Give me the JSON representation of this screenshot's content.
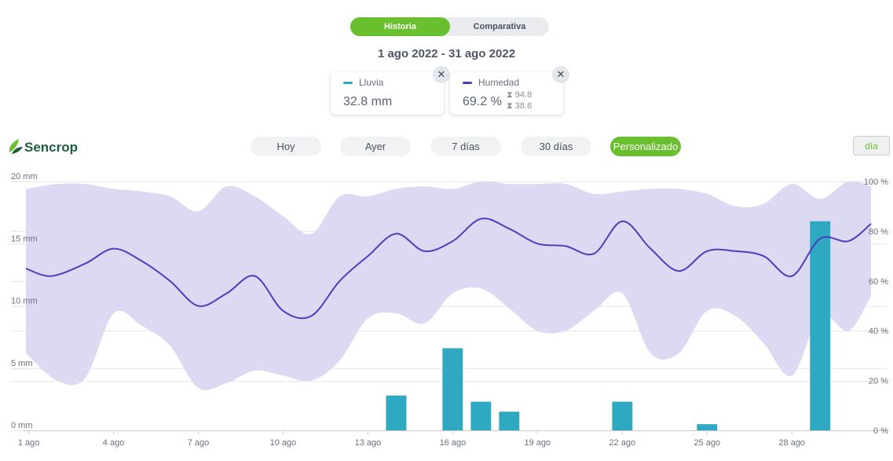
{
  "toggle": {
    "historia": "Historia",
    "comparativa": "Comparativa"
  },
  "date_range": "1 ago 2022 - 31 ago 2022",
  "cards": {
    "lluvia": {
      "label": "Lluvia",
      "value": "32.8 mm",
      "close": "✕",
      "color": "#2fa9c2"
    },
    "humedad": {
      "label": "Humedad",
      "value": "69.2 %",
      "max": "94.8",
      "min": "38.6",
      "close": "✕",
      "color": "#4c3fbf"
    }
  },
  "logo": {
    "text": "Sencrop"
  },
  "periods": [
    "Hoy",
    "Ayer",
    "7 días",
    "30 días",
    "Personalizado"
  ],
  "active_period": "Personalizado",
  "dia_button": "día",
  "chart_data": {
    "type": "bar+line+area",
    "x_labels": [
      "1 ago",
      "4 ago",
      "7 ago",
      "10 ago",
      "13 ago",
      "16 ago",
      "19 ago",
      "22 ago",
      "25 ago",
      "28 ago"
    ],
    "x_label_days": [
      1,
      4,
      7,
      10,
      13,
      16,
      19,
      22,
      25,
      28
    ],
    "x_range": [
      0.9,
      30.8
    ],
    "y_left": {
      "label_ticks": [
        "0 mm",
        "5 mm",
        "10 mm",
        "15 mm",
        "20 mm"
      ],
      "range": [
        0,
        20
      ],
      "unit": "mm"
    },
    "y_right": {
      "label_ticks": [
        "0 %",
        "20 %",
        "40 %",
        "60 %",
        "80 %",
        "100 %"
      ],
      "range": [
        0,
        100
      ],
      "unit": "%"
    },
    "rain": {
      "name": "Lluvia",
      "color": "#2fa9c2",
      "days": [
        1,
        2,
        3,
        4,
        5,
        6,
        7,
        8,
        9,
        10,
        11,
        12,
        13,
        14,
        15,
        16,
        17,
        18,
        19,
        20,
        21,
        22,
        23,
        24,
        25,
        26,
        27,
        28,
        29,
        30,
        31
      ],
      "values": [
        0,
        0,
        0,
        0,
        0,
        0,
        0,
        0,
        0,
        0,
        0,
        0,
        0,
        2.8,
        0,
        6.6,
        2.3,
        1.5,
        0,
        0,
        0,
        2.3,
        0,
        0,
        0.5,
        0,
        0,
        0,
        16.8,
        0,
        0
      ]
    },
    "humidity_avg": {
      "name": "Humedad",
      "color": "#4c3fbf",
      "days": [
        0.9,
        1.8,
        3,
        4,
        5,
        6,
        7,
        8,
        9,
        10,
        11,
        12,
        13,
        14,
        15,
        16,
        17,
        18,
        19,
        20,
        21,
        22,
        23,
        24,
        25,
        26,
        27,
        28,
        29,
        30,
        30.8
      ],
      "values": [
        65,
        62,
        67,
        73,
        68,
        60,
        50,
        55,
        62,
        48,
        46,
        60,
        70,
        79,
        72,
        76,
        85,
        81,
        75,
        74,
        71,
        84,
        73,
        64,
        72,
        72,
        70,
        62,
        77,
        76,
        83
      ]
    },
    "humidity_max": {
      "days": [
        0.9,
        2,
        3,
        4,
        5,
        6,
        7,
        8,
        9,
        10,
        11,
        12,
        13,
        14,
        15,
        16,
        17,
        18,
        19,
        20,
        21,
        22,
        23,
        24,
        25,
        26,
        27,
        28,
        29,
        30,
        30.8
      ],
      "values": [
        97,
        99,
        99,
        97,
        96,
        94,
        88,
        98,
        94,
        86,
        79,
        94,
        94,
        97,
        98,
        97,
        100,
        99,
        99,
        99,
        95,
        96,
        97,
        97,
        95,
        90,
        91,
        99,
        93,
        100,
        98
      ]
    },
    "humidity_min": {
      "days": [
        0.9,
        2,
        3,
        4,
        5,
        6,
        7,
        8,
        9,
        10,
        11,
        12,
        13,
        14,
        15,
        16,
        17,
        18,
        19,
        20,
        21,
        22,
        23,
        24,
        25,
        26,
        27,
        28,
        29,
        30,
        30.8
      ],
      "values": [
        31,
        20,
        21,
        47,
        42,
        34,
        17,
        19,
        24,
        22,
        20,
        28,
        45,
        47,
        43,
        55,
        57,
        49,
        40,
        40,
        48,
        55,
        31,
        31,
        48,
        46,
        35,
        22,
        46,
        40,
        54
      ]
    }
  }
}
